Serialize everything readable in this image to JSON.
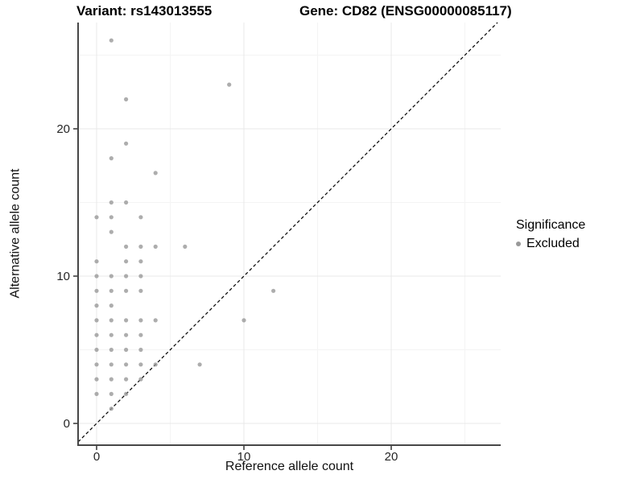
{
  "figure": {
    "title_left": "Variant: rs143013555",
    "title_right": "Gene: CD82 (ENSG00000085117)"
  },
  "legend": {
    "title": "Significance",
    "items": [
      {
        "label": "Excluded",
        "marker": "circle",
        "color": "#999999"
      }
    ]
  },
  "chart_data": {
    "type": "scatter",
    "xlabel": "Reference allele count",
    "ylabel": "Alternative allele count",
    "xticks": [
      0,
      10,
      20
    ],
    "yticks": [
      0,
      10,
      20
    ],
    "xminor": [
      5,
      15,
      25
    ],
    "yminor": [
      5,
      15,
      25
    ],
    "xlim": [
      -1.3,
      27.4
    ],
    "ylim": [
      -1.3,
      27.2
    ],
    "grid": true,
    "legend_position": "right",
    "identity_line": {
      "style": "dashed",
      "color": "#000000",
      "slope": 1,
      "intercept": 0
    },
    "point_color": "#999999",
    "series": [
      {
        "name": "Excluded",
        "points": [
          [
            0,
            2
          ],
          [
            0,
            3
          ],
          [
            0,
            4
          ],
          [
            0,
            5
          ],
          [
            0,
            6
          ],
          [
            0,
            7
          ],
          [
            0,
            8
          ],
          [
            0,
            9
          ],
          [
            0,
            10
          ],
          [
            0,
            11
          ],
          [
            0,
            14
          ],
          [
            1,
            1
          ],
          [
            1,
            2
          ],
          [
            1,
            3
          ],
          [
            1,
            4
          ],
          [
            1,
            5
          ],
          [
            1,
            6
          ],
          [
            1,
            7
          ],
          [
            1,
            8
          ],
          [
            1,
            9
          ],
          [
            1,
            10
          ],
          [
            1,
            13
          ],
          [
            1,
            14
          ],
          [
            1,
            15
          ],
          [
            1,
            18
          ],
          [
            1,
            26
          ],
          [
            2,
            2
          ],
          [
            2,
            3
          ],
          [
            2,
            4
          ],
          [
            2,
            5
          ],
          [
            2,
            6
          ],
          [
            2,
            7
          ],
          [
            2,
            9
          ],
          [
            2,
            10
          ],
          [
            2,
            11
          ],
          [
            2,
            12
          ],
          [
            2,
            15
          ],
          [
            2,
            19
          ],
          [
            2,
            22
          ],
          [
            3,
            3
          ],
          [
            3,
            4
          ],
          [
            3,
            5
          ],
          [
            3,
            6
          ],
          [
            3,
            7
          ],
          [
            3,
            9
          ],
          [
            3,
            10
          ],
          [
            3,
            11
          ],
          [
            3,
            12
          ],
          [
            3,
            14
          ],
          [
            4,
            4
          ],
          [
            4,
            7
          ],
          [
            4,
            12
          ],
          [
            4,
            17
          ],
          [
            6,
            12
          ],
          [
            7,
            4
          ],
          [
            9,
            23
          ],
          [
            10,
            7
          ],
          [
            12,
            9
          ]
        ]
      }
    ]
  },
  "colors": {
    "background": "#ffffff",
    "grid_major": "#e8e8e8",
    "grid_minor": "#f4f4f4",
    "axis_line": "#474747",
    "tick": "#333333",
    "tick_label": "#262626",
    "point": "#999999",
    "text": "#000000"
  }
}
